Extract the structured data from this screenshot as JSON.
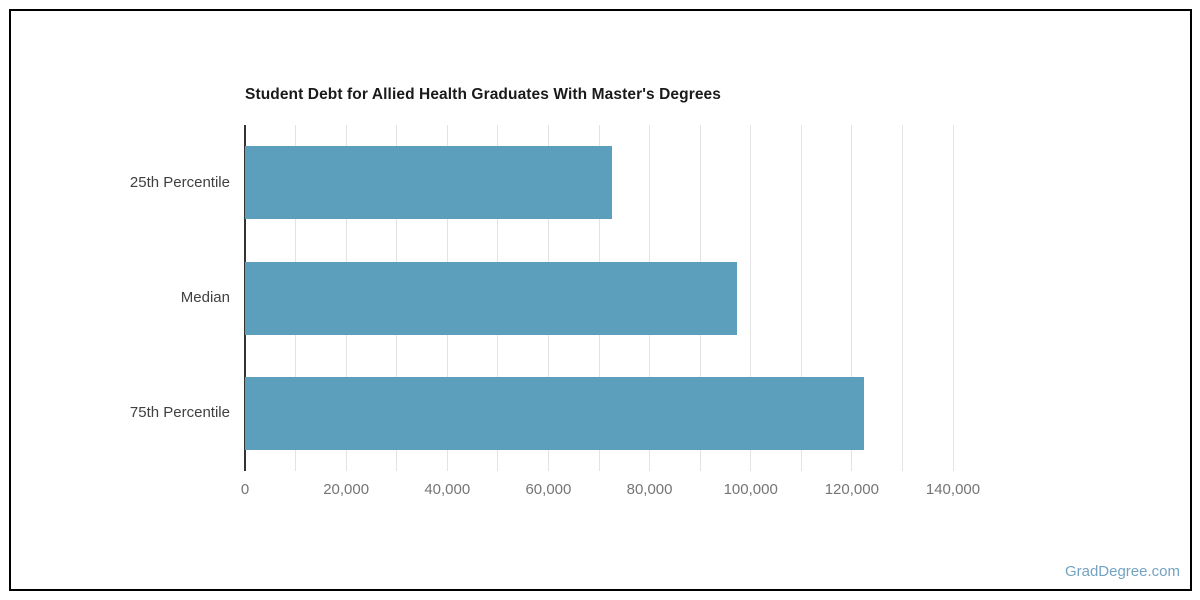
{
  "chart_data": {
    "type": "bar",
    "orientation": "horizontal",
    "title": "Student Debt for Allied Health Graduates With Master's Degrees",
    "categories": [
      "25th Percentile",
      "Median",
      "75th Percentile"
    ],
    "values": [
      72500,
      97200,
      122400
    ],
    "xlabel": "",
    "ylabel": "",
    "xlim": [
      0,
      140000
    ],
    "gridline_interval": 10000,
    "x_label_interval": 20000,
    "x_tick_labels": [
      "0",
      "20,000",
      "40,000",
      "60,000",
      "80,000",
      "100,000",
      "120,000",
      "140,000"
    ],
    "grid": true,
    "legend": "none",
    "colors": {
      "bar": "#5b9fbd",
      "axis_line": "#333333",
      "gridline": "#e3e3e3",
      "title_text": "#1a1a1a",
      "category_label_text": "#404040",
      "tick_label_text": "#757575"
    }
  },
  "watermark": {
    "label": "GradDegree.com",
    "color": "#73a3c1"
  }
}
